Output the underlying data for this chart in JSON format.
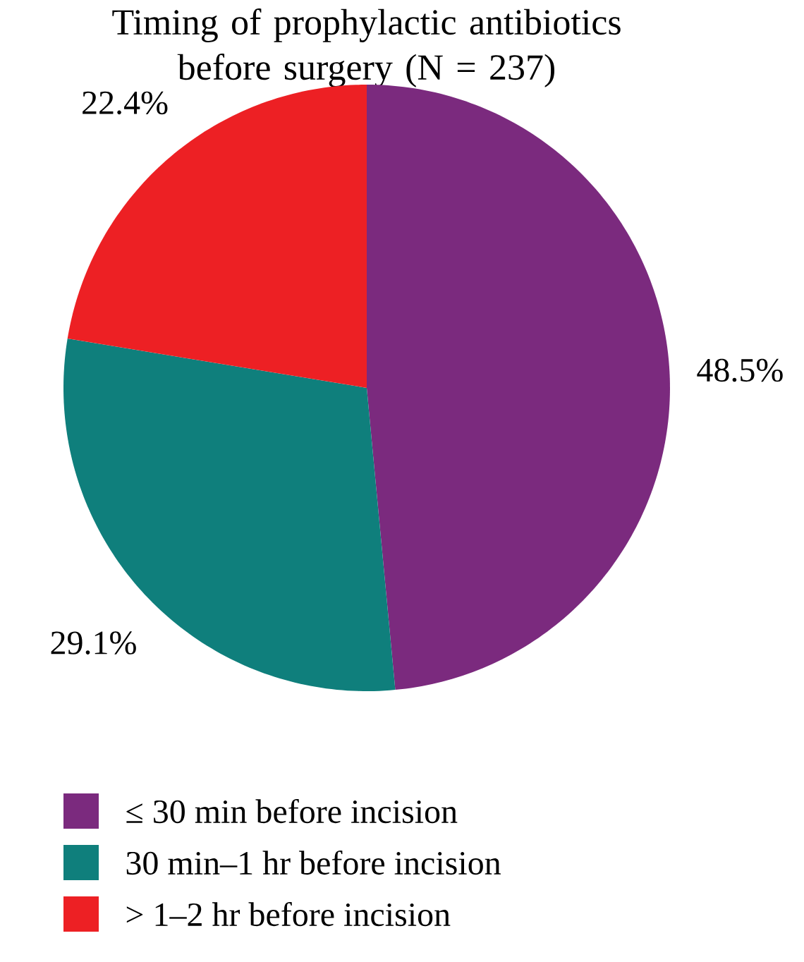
{
  "chart_data": {
    "type": "pie",
    "title": "Timing of prophylactic antibiotics before surgery (N = 237)",
    "categories": [
      "≤ 30 min before incision",
      "30 min–1 hr before incision",
      "> 1–2 hr before incision"
    ],
    "values": [
      48.5,
      29.1,
      22.4
    ],
    "colors": [
      "#7b2a7e",
      "#0f7f7c",
      "#ed2024"
    ],
    "value_labels": [
      "48.5%",
      "29.1%",
      "22.4%"
    ],
    "legend": "bottom"
  }
}
